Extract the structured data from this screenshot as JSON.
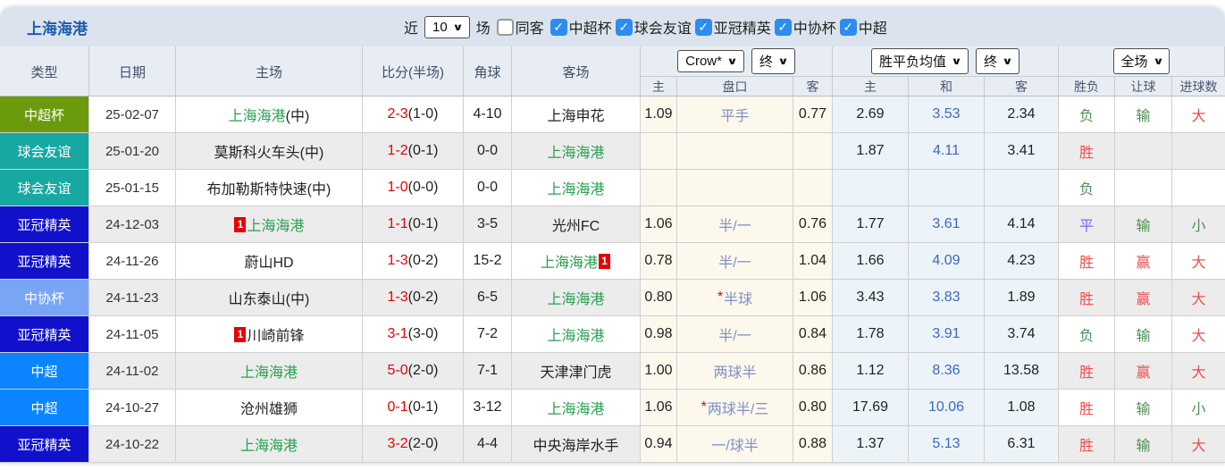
{
  "colors": {
    "team_green": "#28a050",
    "plain_team": "#222222",
    "score_red": "#e60000",
    "pan_blue": "#7e90c8",
    "avg_draw_blue": "#3b68c4",
    "league": {
      "中超杯": "#6b9b0d",
      "球会友谊": "#17a8a2",
      "亚冠精英": "#1111cc",
      "中协杯": "#7aa5f5",
      "中超": "#0a85ff"
    },
    "words": {
      "胜": "#ee4d4d",
      "负": "#4f8f58",
      "平": "#6b6bfa",
      "赢": "#ee4d4d",
      "输": "#4f8f58",
      "大": "#ee4d4d",
      "小": "#4f8f58"
    }
  },
  "topbar": {
    "title": "上海海港",
    "recent_label": "近",
    "recent_value": "10",
    "matches_label": "场",
    "same_venue": {
      "label": "同客",
      "checked": false
    },
    "filters": [
      {
        "label": "中超杯",
        "checked": true
      },
      {
        "label": "球会友谊",
        "checked": true
      },
      {
        "label": "亚冠精英",
        "checked": true
      },
      {
        "label": "中协杯",
        "checked": true
      },
      {
        "label": "中超",
        "checked": true
      }
    ]
  },
  "header": {
    "cols": [
      "类型",
      "日期",
      "主场",
      "比分(半场)",
      "角球",
      "客场"
    ],
    "sub": [
      "主",
      "盘口",
      "客",
      "主",
      "和",
      "客",
      "胜负",
      "让球",
      "进球数"
    ],
    "selects": {
      "odds_company": "Crow*",
      "odds_stage": "终",
      "avg_type": "胜平负均值",
      "avg_stage": "终",
      "scope": "全场"
    }
  },
  "table": {
    "rows": [
      {
        "type": "中超杯",
        "date": "25-02-07",
        "home": {
          "name": "上海海港",
          "suffix": "(中)",
          "self": true
        },
        "score": "2-3",
        "half": "(1-0)",
        "corners": "4-10",
        "away": {
          "name": "上海申花",
          "self": false
        },
        "odds": {
          "home": "1.09",
          "pan": "平手",
          "star": false,
          "away": "0.77"
        },
        "avg": {
          "home": "2.69",
          "draw": "3.53",
          "away": "2.34"
        },
        "results": {
          "outcome": "负",
          "handicap": "输",
          "goals": "大"
        }
      },
      {
        "type": "球会友谊",
        "date": "25-01-20",
        "home": {
          "name": "莫斯科火车头",
          "suffix": "(中)",
          "self": false
        },
        "score": "1-2",
        "half": "(0-1)",
        "corners": "0-0",
        "away": {
          "name": "上海海港",
          "self": true
        },
        "odds": {
          "home": "",
          "pan": "",
          "star": false,
          "away": ""
        },
        "avg": {
          "home": "1.87",
          "draw": "4.11",
          "away": "3.41"
        },
        "results": {
          "outcome": "胜",
          "handicap": "",
          "goals": ""
        }
      },
      {
        "type": "球会友谊",
        "date": "25-01-15",
        "home": {
          "name": "布加勒斯特快速",
          "suffix": "(中)",
          "self": false
        },
        "score": "1-0",
        "half": "(0-0)",
        "corners": "0-0",
        "away": {
          "name": "上海海港",
          "self": true
        },
        "odds": {
          "home": "",
          "pan": "",
          "star": false,
          "away": ""
        },
        "avg": {
          "home": "",
          "draw": "",
          "away": ""
        },
        "results": {
          "outcome": "负",
          "handicap": "",
          "goals": ""
        }
      },
      {
        "type": "亚冠精英",
        "date": "24-12-03",
        "home": {
          "badge": "1",
          "badge_pos": "before",
          "name": "上海海港",
          "self": true
        },
        "score": "1-1",
        "half": "(0-1)",
        "corners": "3-5",
        "away": {
          "name": "光州FC",
          "self": false
        },
        "odds": {
          "home": "1.06",
          "pan": "半/一",
          "star": false,
          "away": "0.76"
        },
        "avg": {
          "home": "1.77",
          "draw": "3.61",
          "away": "4.14"
        },
        "results": {
          "outcome": "平",
          "handicap": "输",
          "goals": "小"
        }
      },
      {
        "type": "亚冠精英",
        "date": "24-11-26",
        "home": {
          "name": "蔚山HD",
          "self": false
        },
        "score": "1-3",
        "half": "(0-2)",
        "corners": "15-2",
        "away": {
          "name": "上海海港",
          "self": true,
          "badge": "1",
          "badge_pos": "after"
        },
        "odds": {
          "home": "0.78",
          "pan": "半/一",
          "star": false,
          "away": "1.04"
        },
        "avg": {
          "home": "1.66",
          "draw": "4.09",
          "away": "4.23"
        },
        "results": {
          "outcome": "胜",
          "handicap": "赢",
          "goals": "大"
        }
      },
      {
        "type": "中协杯",
        "date": "24-11-23",
        "home": {
          "name": "山东泰山",
          "suffix": "(中)",
          "self": false
        },
        "score": "1-3",
        "half": "(0-2)",
        "corners": "6-5",
        "away": {
          "name": "上海海港",
          "self": true
        },
        "odds": {
          "home": "0.80",
          "pan": "半球",
          "star": true,
          "away": "1.06"
        },
        "avg": {
          "home": "3.43",
          "draw": "3.83",
          "away": "1.89"
        },
        "results": {
          "outcome": "胜",
          "handicap": "赢",
          "goals": "大"
        }
      },
      {
        "type": "亚冠精英",
        "date": "24-11-05",
        "home": {
          "badge": "1",
          "badge_pos": "before",
          "name": "川崎前锋",
          "self": false
        },
        "score": "3-1",
        "half": "(3-0)",
        "corners": "7-2",
        "away": {
          "name": "上海海港",
          "self": true
        },
        "odds": {
          "home": "0.98",
          "pan": "半/一",
          "star": false,
          "away": "0.84"
        },
        "avg": {
          "home": "1.78",
          "draw": "3.91",
          "away": "3.74"
        },
        "results": {
          "outcome": "负",
          "handicap": "输",
          "goals": "大"
        }
      },
      {
        "type": "中超",
        "date": "24-11-02",
        "home": {
          "name": "上海海港",
          "self": true
        },
        "score": "5-0",
        "half": "(2-0)",
        "corners": "7-1",
        "away": {
          "name": "天津津门虎",
          "self": false
        },
        "odds": {
          "home": "1.00",
          "pan": "两球半",
          "star": false,
          "away": "0.86"
        },
        "avg": {
          "home": "1.12",
          "draw": "8.36",
          "away": "13.58"
        },
        "results": {
          "outcome": "胜",
          "handicap": "赢",
          "goals": "大"
        }
      },
      {
        "type": "中超",
        "date": "24-10-27",
        "home": {
          "name": "沧州雄狮",
          "self": false
        },
        "score": "0-1",
        "half": "(0-1)",
        "corners": "3-12",
        "away": {
          "name": "上海海港",
          "self": true
        },
        "odds": {
          "home": "1.06",
          "pan": "两球半/三",
          "star": true,
          "away": "0.80"
        },
        "avg": {
          "home": "17.69",
          "draw": "10.06",
          "away": "1.08"
        },
        "results": {
          "outcome": "胜",
          "handicap": "输",
          "goals": "小"
        }
      },
      {
        "type": "亚冠精英",
        "date": "24-10-22",
        "home": {
          "name": "上海海港",
          "self": true
        },
        "score": "3-2",
        "half": "(2-0)",
        "corners": "4-4",
        "away": {
          "name": "中央海岸水手",
          "self": false
        },
        "odds": {
          "home": "0.94",
          "pan": "一/球半",
          "star": false,
          "away": "0.88"
        },
        "avg": {
          "home": "1.37",
          "draw": "5.13",
          "away": "6.31"
        },
        "results": {
          "outcome": "胜",
          "handicap": "输",
          "goals": "大"
        }
      }
    ]
  }
}
